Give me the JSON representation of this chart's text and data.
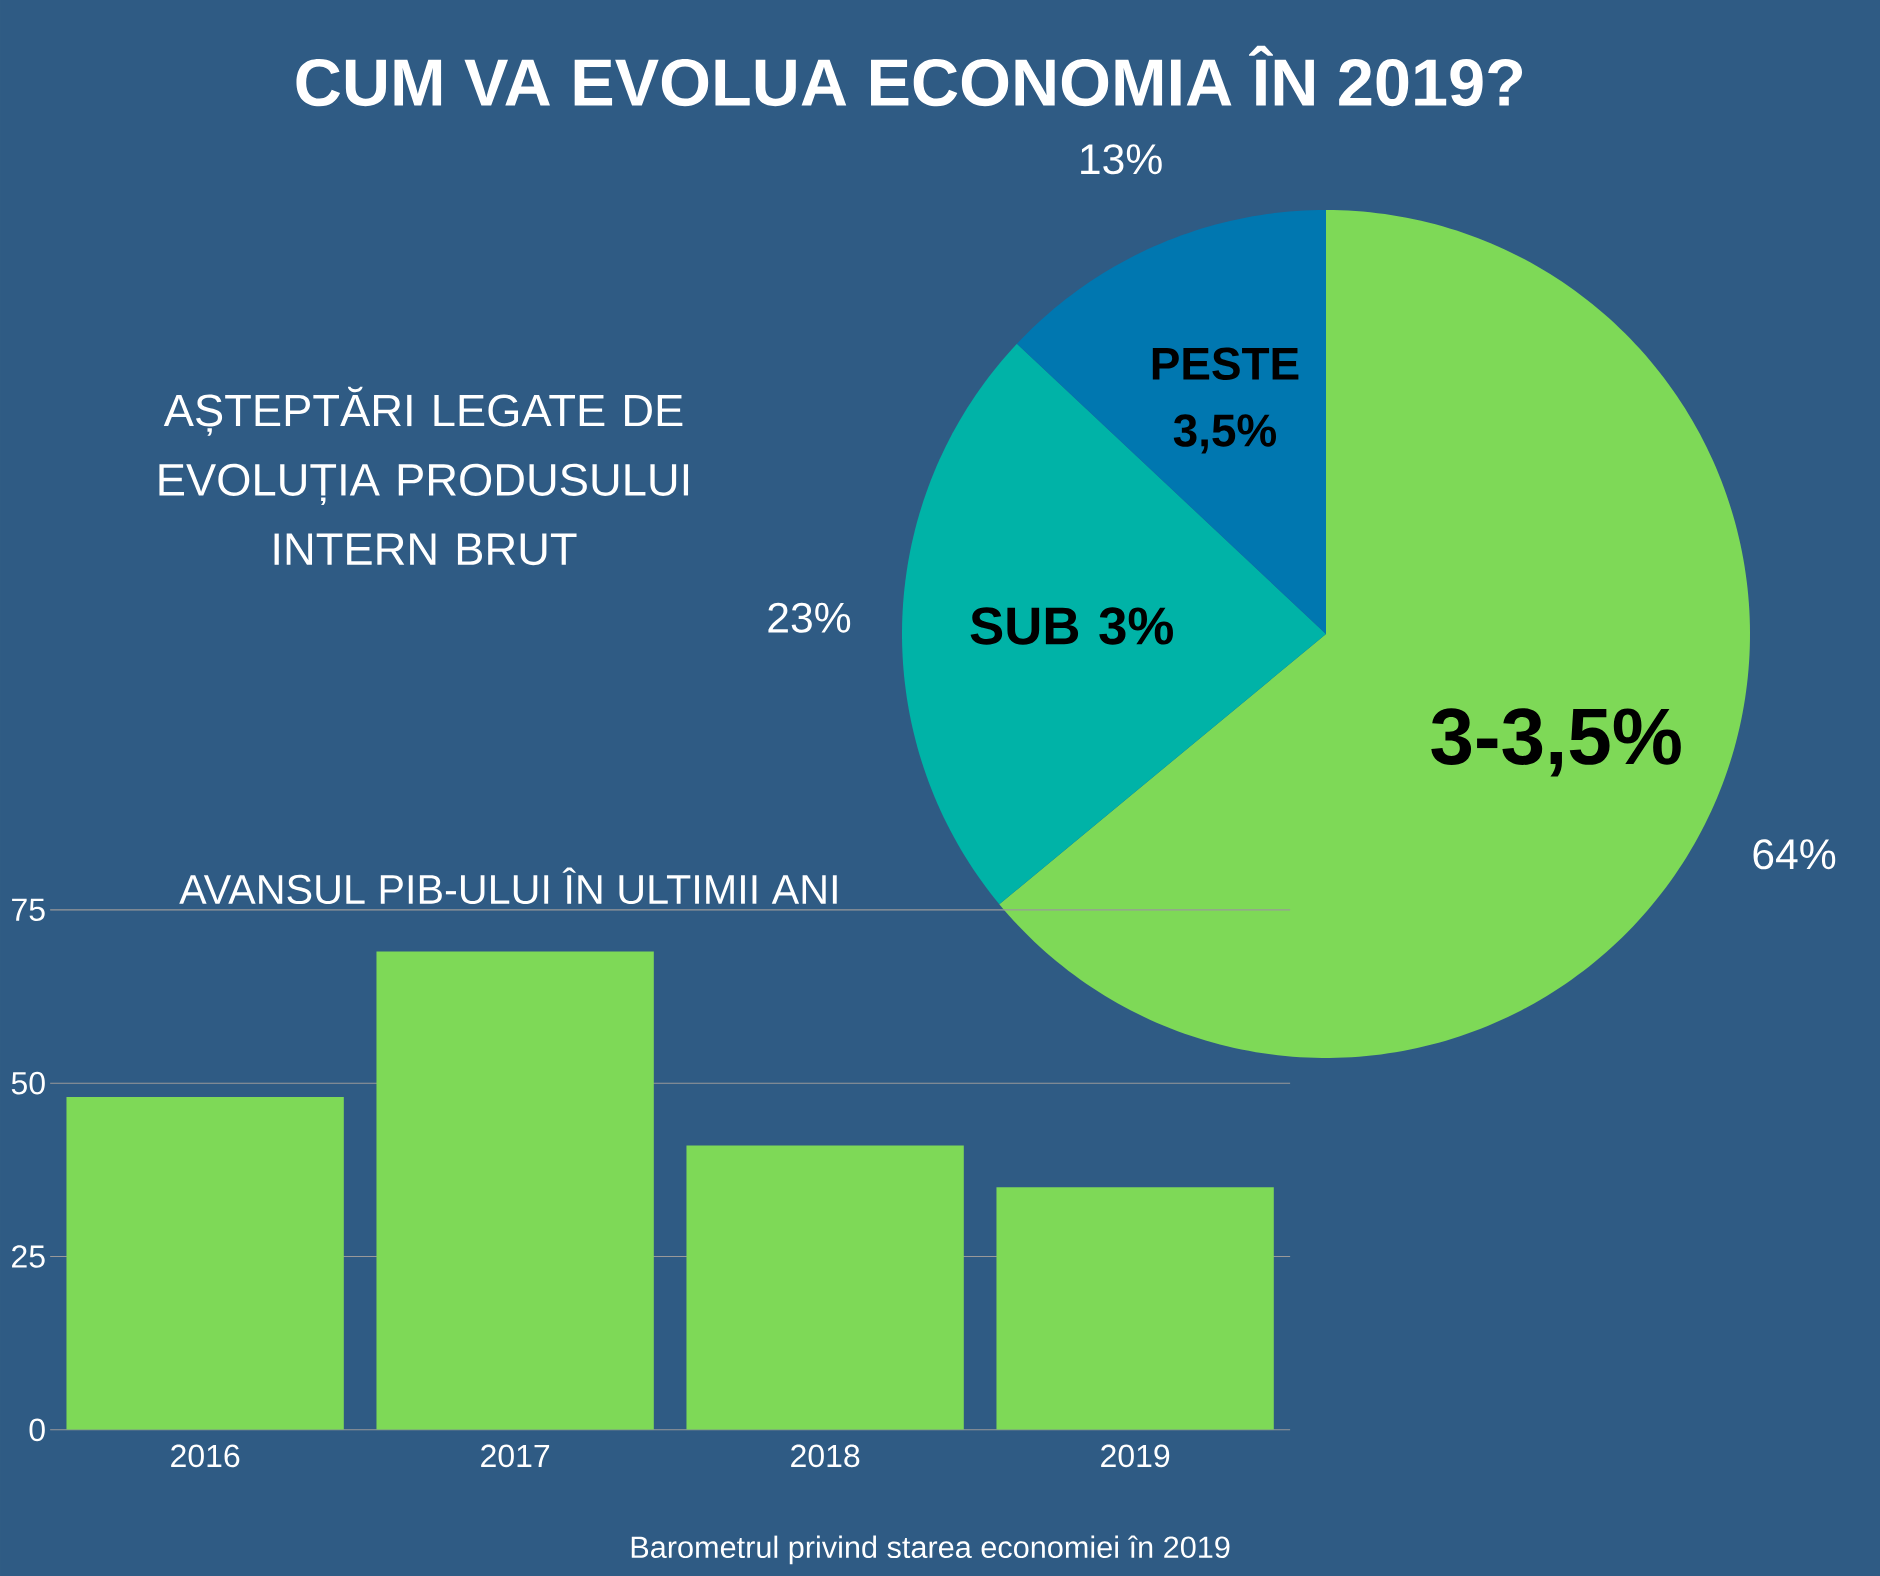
{
  "chart_data": [
    {
      "type": "pie",
      "title": "CUM VA EVOLUA ECONOMIA ÎN 2019?",
      "subtitle": "AȘTEPTĂRI LEGATE DE EVOLUȚIA PRODUSULUI INTERN BRUT",
      "categories": [
        "3-3,5%",
        "SUB 3%",
        "PESTE 3,5%"
      ],
      "values": [
        64,
        23,
        13
      ],
      "value_labels": [
        "64%",
        "23%",
        "13%"
      ],
      "colors": [
        "#7ed957",
        "#00b3a7",
        "#0077b0"
      ]
    },
    {
      "type": "bar",
      "title": "AVANSUL PIB-ULUI ÎN ULTIMII ANI",
      "categories": [
        "2016",
        "2017",
        "2018",
        "2019"
      ],
      "values": [
        48,
        69,
        41,
        35
      ],
      "color": "#7ed957",
      "ylim": [
        0,
        75
      ],
      "yticks": [
        0,
        25,
        50,
        75
      ],
      "grid": "y",
      "annotations": [
        "Barometrul privind starea economiei în 2019"
      ]
    }
  ]
}
